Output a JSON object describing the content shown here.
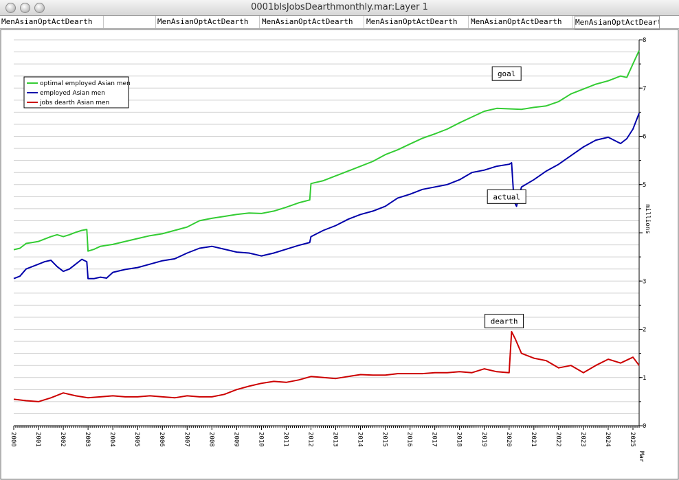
{
  "window": {
    "title": "0001blsJobsDearthmonthly.mar:Layer 1"
  },
  "tabs": [
    "MenAsianOptActDearth",
    "",
    "MenAsianOptActDearth",
    "MenAsianOptActDearth",
    "MenAsianOptActDearth",
    "MenAsianOptActDearth",
    "MenAsianOptActDearth"
  ],
  "chart_data": {
    "type": "line",
    "ylabel": "millions",
    "ylim": [
      0,
      8
    ],
    "yticks": [
      0,
      1,
      2,
      3,
      4,
      5,
      6,
      7,
      8
    ],
    "ytick_labels": [
      "0",
      "1",
      "2",
      "3",
      "",
      "5",
      "6",
      "7",
      "8"
    ],
    "xlim": [
      2000.0,
      2025.25
    ],
    "xtick_labels": [
      "2000",
      "2001",
      "2002",
      "2003",
      "2004",
      "2005",
      "2006",
      "2007",
      "2008",
      "2009",
      "2010",
      "2011",
      "2012",
      "2013",
      "2014",
      "2015",
      "2016",
      "2017",
      "2018",
      "2019",
      "2020",
      "2021",
      "2022",
      "2023",
      "2024",
      "2025"
    ],
    "x_end_label": "Mar",
    "legend": {
      "position": "top-left",
      "entries": [
        "optimal employed Asian men",
        "employed Asian men",
        "jobs dearth Asian men"
      ]
    },
    "annotations": [
      {
        "text": "goal",
        "x": 2019.9,
        "y": 7.3
      },
      {
        "text": "actual",
        "x": 2019.9,
        "y": 4.75
      },
      {
        "text": "dearth",
        "x": 2019.8,
        "y": 2.17
      }
    ],
    "series": [
      {
        "name": "optimal employed Asian men",
        "color": "#33cc33",
        "x": [
          2000.0,
          2000.25,
          2000.5,
          2000.75,
          2001.0,
          2001.25,
          2001.5,
          2001.75,
          2002.0,
          2002.25,
          2002.5,
          2002.75,
          2002.95,
          2003.0,
          2003.25,
          2003.5,
          2003.75,
          2004.0,
          2004.5,
          2005.0,
          2005.5,
          2006.0,
          2006.5,
          2007.0,
          2007.5,
          2008.0,
          2008.5,
          2009.0,
          2009.5,
          2010.0,
          2010.5,
          2011.0,
          2011.5,
          2011.95,
          2012.0,
          2012.5,
          2013.0,
          2013.5,
          2014.0,
          2014.5,
          2015.0,
          2015.5,
          2016.0,
          2016.5,
          2017.0,
          2017.5,
          2018.0,
          2018.5,
          2019.0,
          2019.5,
          2020.0,
          2020.5,
          2021.0,
          2021.5,
          2022.0,
          2022.5,
          2023.0,
          2023.5,
          2024.0,
          2024.5,
          2024.75,
          2025.0,
          2025.25
        ],
        "y": [
          3.65,
          3.68,
          3.78,
          3.8,
          3.82,
          3.87,
          3.92,
          3.96,
          3.92,
          3.96,
          4.01,
          4.05,
          4.07,
          3.62,
          3.66,
          3.72,
          3.74,
          3.76,
          3.82,
          3.88,
          3.94,
          3.98,
          4.05,
          4.12,
          4.25,
          4.3,
          4.34,
          4.38,
          4.41,
          4.4,
          4.45,
          4.53,
          4.62,
          4.68,
          5.02,
          5.08,
          5.18,
          5.28,
          5.38,
          5.48,
          5.62,
          5.72,
          5.84,
          5.96,
          6.05,
          6.15,
          6.28,
          6.4,
          6.52,
          6.58,
          6.57,
          6.56,
          6.6,
          6.63,
          6.72,
          6.88,
          6.98,
          7.08,
          7.15,
          7.25,
          7.22,
          7.5,
          7.78
        ]
      },
      {
        "name": "employed Asian men",
        "color": "#0000aa",
        "x": [
          2000.0,
          2000.25,
          2000.5,
          2000.75,
          2001.0,
          2001.25,
          2001.5,
          2001.75,
          2002.0,
          2002.25,
          2002.5,
          2002.75,
          2002.95,
          2003.0,
          2003.25,
          2003.5,
          2003.75,
          2004.0,
          2004.5,
          2005.0,
          2005.5,
          2006.0,
          2006.5,
          2007.0,
          2007.5,
          2008.0,
          2008.5,
          2009.0,
          2009.5,
          2010.0,
          2010.5,
          2011.0,
          2011.5,
          2011.95,
          2012.0,
          2012.5,
          2013.0,
          2013.5,
          2014.0,
          2014.5,
          2015.0,
          2015.5,
          2016.0,
          2016.5,
          2017.0,
          2017.5,
          2018.0,
          2018.5,
          2019.0,
          2019.5,
          2020.0,
          2020.1,
          2020.2,
          2020.3,
          2020.5,
          2021.0,
          2021.5,
          2022.0,
          2022.5,
          2023.0,
          2023.5,
          2024.0,
          2024.5,
          2024.75,
          2025.0,
          2025.25
        ],
        "y": [
          3.05,
          3.1,
          3.25,
          3.3,
          3.35,
          3.4,
          3.43,
          3.3,
          3.2,
          3.25,
          3.35,
          3.45,
          3.4,
          3.05,
          3.05,
          3.08,
          3.06,
          3.18,
          3.24,
          3.28,
          3.35,
          3.42,
          3.46,
          3.58,
          3.68,
          3.72,
          3.66,
          3.6,
          3.58,
          3.52,
          3.58,
          3.66,
          3.74,
          3.8,
          3.92,
          4.05,
          4.15,
          4.28,
          4.38,
          4.45,
          4.55,
          4.72,
          4.8,
          4.9,
          4.95,
          5.0,
          5.1,
          5.25,
          5.3,
          5.38,
          5.42,
          5.45,
          4.65,
          4.55,
          4.95,
          5.1,
          5.28,
          5.42,
          5.6,
          5.78,
          5.92,
          5.98,
          5.85,
          5.95,
          6.15,
          6.48
        ]
      },
      {
        "name": "jobs dearth Asian men",
        "color": "#cc0000",
        "x": [
          2000.0,
          2000.5,
          2001.0,
          2001.5,
          2002.0,
          2002.5,
          2003.0,
          2003.5,
          2004.0,
          2004.5,
          2005.0,
          2005.5,
          2006.0,
          2006.5,
          2007.0,
          2007.5,
          2008.0,
          2008.5,
          2009.0,
          2009.5,
          2010.0,
          2010.5,
          2011.0,
          2011.5,
          2012.0,
          2012.5,
          2013.0,
          2013.5,
          2014.0,
          2014.5,
          2015.0,
          2015.5,
          2016.0,
          2016.5,
          2017.0,
          2017.5,
          2018.0,
          2018.5,
          2019.0,
          2019.5,
          2020.0,
          2020.1,
          2020.25,
          2020.5,
          2021.0,
          2021.5,
          2022.0,
          2022.5,
          2023.0,
          2023.5,
          2024.0,
          2024.5,
          2025.0,
          2025.25
        ],
        "y": [
          0.55,
          0.52,
          0.5,
          0.58,
          0.68,
          0.62,
          0.58,
          0.6,
          0.62,
          0.6,
          0.6,
          0.62,
          0.6,
          0.58,
          0.62,
          0.6,
          0.6,
          0.65,
          0.75,
          0.82,
          0.88,
          0.92,
          0.9,
          0.95,
          1.02,
          1.0,
          0.98,
          1.02,
          1.06,
          1.05,
          1.05,
          1.08,
          1.08,
          1.08,
          1.1,
          1.1,
          1.12,
          1.1,
          1.18,
          1.12,
          1.1,
          1.95,
          1.8,
          1.5,
          1.4,
          1.35,
          1.2,
          1.25,
          1.1,
          1.25,
          1.38,
          1.3,
          1.42,
          1.25
        ]
      }
    ]
  }
}
